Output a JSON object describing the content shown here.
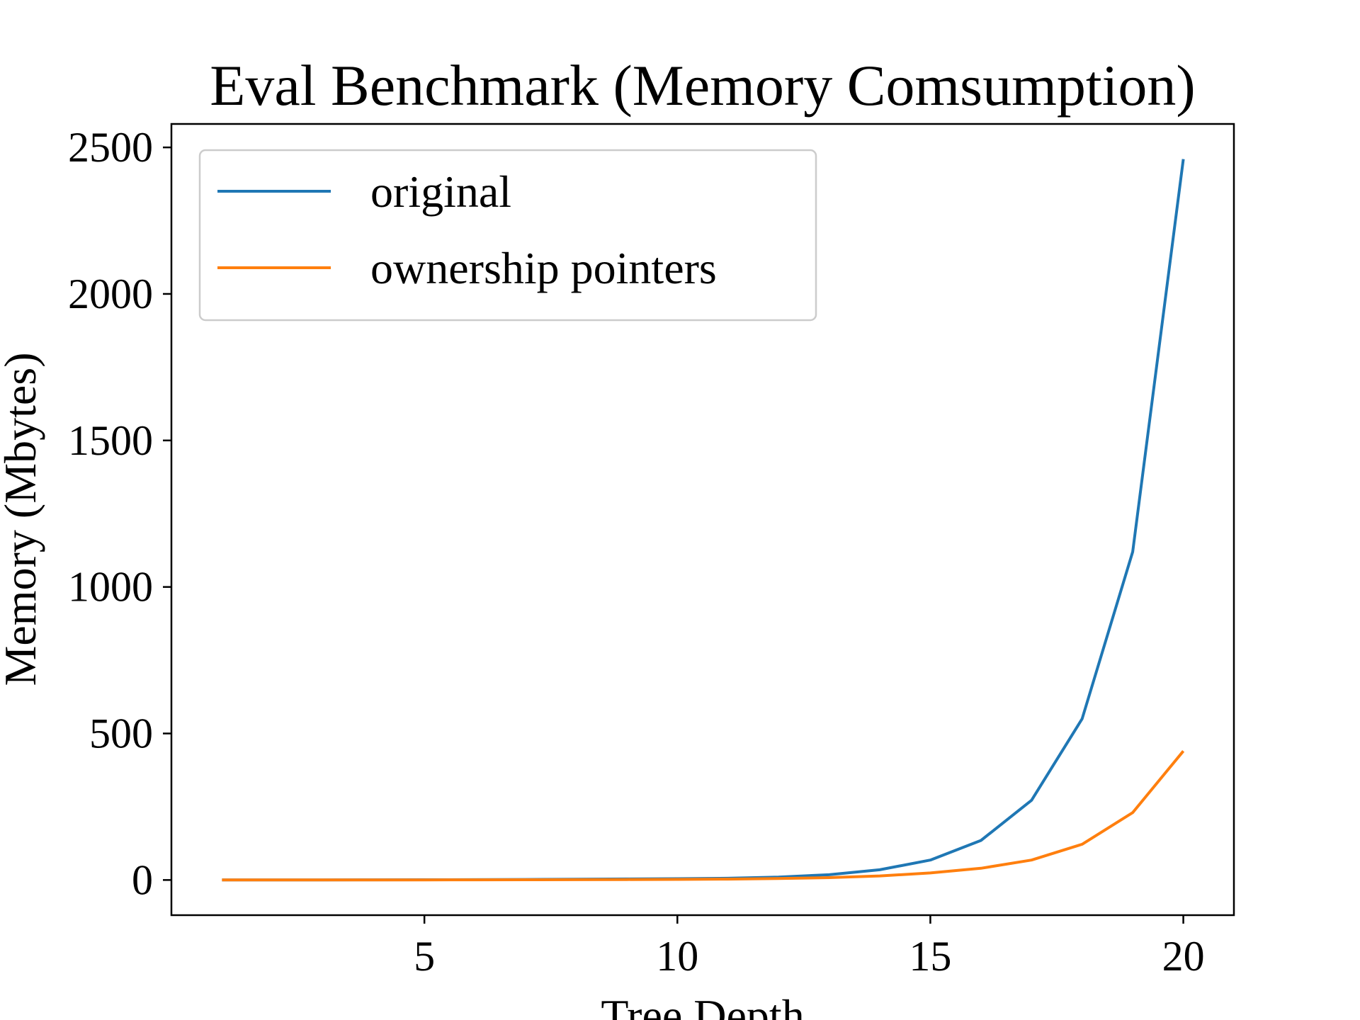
{
  "chart_data": {
    "type": "line",
    "title": "Eval Benchmark (Memory Comsumption)",
    "xlabel": "Tree Depth",
    "ylabel": "Memory (Mbytes)",
    "xlim": [
      0,
      21
    ],
    "ylim": [
      -120,
      2580
    ],
    "xticks": [
      5,
      10,
      15,
      20
    ],
    "yticks": [
      0,
      500,
      1000,
      1500,
      2000,
      2500
    ],
    "grid": false,
    "legend_position": "top-left",
    "x": [
      1,
      2,
      3,
      4,
      5,
      6,
      7,
      8,
      9,
      10,
      11,
      12,
      13,
      14,
      15,
      16,
      17,
      18,
      19,
      20
    ],
    "series": [
      {
        "name": "original",
        "color": "#1f77b4",
        "values": [
          0.1,
          0.2,
          0.3,
          0.5,
          0.8,
          1.2,
          1.8,
          2.5,
          3.5,
          4.5,
          6,
          10,
          18,
          35,
          68,
          135,
          272,
          550,
          1120,
          2460
        ]
      },
      {
        "name": "ownership pointers",
        "color": "#ff7f0e",
        "values": [
          0.1,
          0.1,
          0.2,
          0.3,
          0.4,
          0.6,
          0.8,
          1.0,
          1.5,
          2,
          3,
          5,
          8,
          14,
          24,
          40,
          68,
          122,
          230,
          440
        ]
      }
    ]
  }
}
